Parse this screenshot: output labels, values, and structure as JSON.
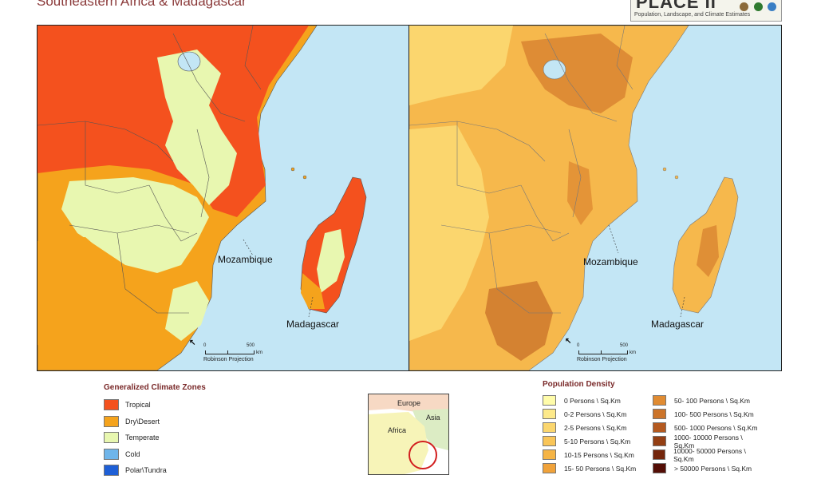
{
  "header": {
    "title": "Southeastern Africa & Madagascar",
    "logo_main": "PLACE II",
    "logo_sub": "Population, Landscape, and Climate Estimates"
  },
  "map_left": {
    "labels": {
      "mozambique": "Mozambique",
      "madagascar": "Madagascar"
    },
    "scale": {
      "zero": "0",
      "max": "500",
      "unit": "km",
      "projection": "Robinson Projection"
    },
    "north_symbol": "↖"
  },
  "map_right": {
    "labels": {
      "mozambique": "Mozambique",
      "madagascar": "Madagascar"
    },
    "scale": {
      "zero": "0",
      "max": "500",
      "unit": "km",
      "projection": "Robinson Projection"
    },
    "north_symbol": "↖"
  },
  "climate_legend": {
    "title": "Generalized Climate Zones",
    "items": [
      {
        "label": "Tropical",
        "color": "#f4511e"
      },
      {
        "label": "Dry\\Desert",
        "color": "#f5a31c"
      },
      {
        "label": "Temperate",
        "color": "#e8f7b0"
      },
      {
        "label": "Cold",
        "color": "#6fb5ea"
      },
      {
        "label": "Polar\\Tundra",
        "color": "#1e5fd6"
      }
    ]
  },
  "inset": {
    "labels": {
      "europe": "Europe",
      "asia": "Asia",
      "africa": "Africa"
    },
    "highlight_color": "#d21f1f"
  },
  "density_legend": {
    "title": "Population Density",
    "col1": [
      {
        "label": "0 Persons \\ Sq.Km",
        "color": "#fffcaa"
      },
      {
        "label": "0-2 Persons \\ Sq.Km",
        "color": "#fde98a"
      },
      {
        "label": "2-5 Persons \\ Sq.Km",
        "color": "#fbd66e"
      },
      {
        "label": "5-10 Persons \\ Sq.Km",
        "color": "#f9c558"
      },
      {
        "label": "10-15 Persons \\ Sq.Km",
        "color": "#f5b445"
      },
      {
        "label": "15- 50 Persons \\ Sq.Km",
        "color": "#f0a23a"
      }
    ],
    "col2": [
      {
        "label": "50- 100 Persons \\ Sq.Km",
        "color": "#e08b32"
      },
      {
        "label": "100- 500 Persons \\ Sq.Km",
        "color": "#cc742a"
      },
      {
        "label": "500- 1000 Persons \\ Sq.Km",
        "color": "#b45a20"
      },
      {
        "label": "1000- 10000 Persons \\ Sq.Km",
        "color": "#943f14"
      },
      {
        "label": "10000- 50000 Persons \\ Sq.Km",
        "color": "#74260c"
      },
      {
        "label": "> 50000 Persons \\ Sq.Km",
        "color": "#540e06"
      }
    ]
  }
}
